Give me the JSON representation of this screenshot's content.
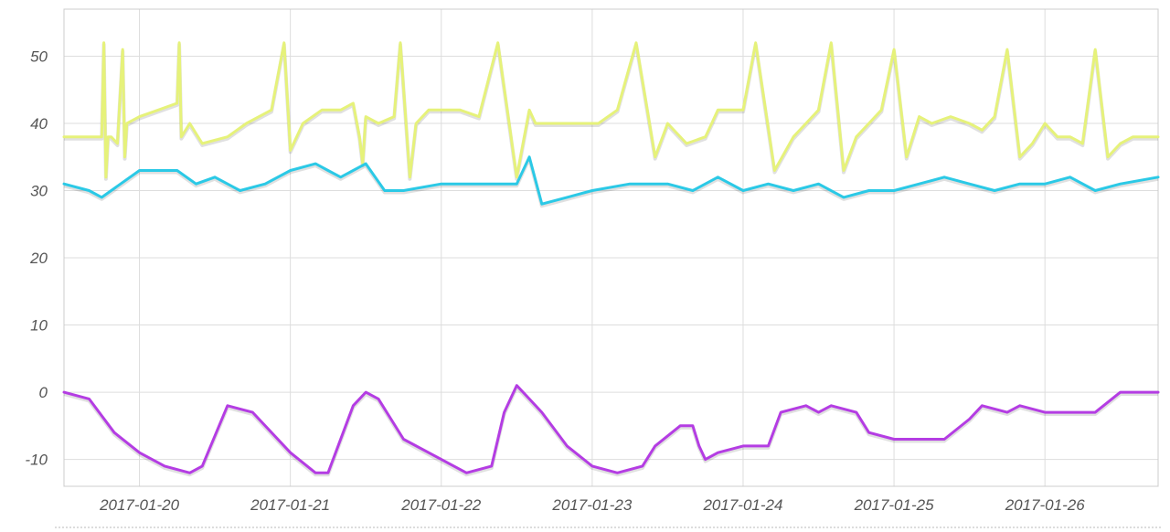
{
  "chart_data": {
    "type": "line",
    "title": "",
    "xlabel": "",
    "ylabel": "",
    "ylim": [
      -14,
      57
    ],
    "xlim": [
      "2017-01-19 12:00",
      "2017-01-26 18:00"
    ],
    "grid": true,
    "legend": "none",
    "y_ticks": [
      "50",
      "40",
      "30",
      "20",
      "10",
      "0",
      "-10"
    ],
    "y_tick_values": [
      50,
      40,
      30,
      20,
      10,
      0,
      -10
    ],
    "x_ticks": [
      "2017-01-20",
      "2017-01-21",
      "2017-01-22",
      "2017-01-23",
      "2017-01-24",
      "2017-01-25",
      "2017-01-26"
    ],
    "x_tick_dates": [
      "2017-01-20 00:00",
      "2017-01-21 00:00",
      "2017-01-22 00:00",
      "2017-01-23 00:00",
      "2017-01-24 00:00",
      "2017-01-25 00:00",
      "2017-01-26 00:00"
    ],
    "series": [
      {
        "color": "#e6f27a",
        "x": [
          "2017-01-19 12:00",
          "2017-01-19 15:00",
          "2017-01-19 18:00",
          "2017-01-19 18:20",
          "2017-01-19 18:40",
          "2017-01-19 19:00",
          "2017-01-19 19:30",
          "2017-01-19 20:30",
          "2017-01-19 21:20",
          "2017-01-19 21:40",
          "2017-01-19 22:00",
          "2017-01-20 00:00",
          "2017-01-20 03:00",
          "2017-01-20 06:00",
          "2017-01-20 06:20",
          "2017-01-20 06:40",
          "2017-01-20 08:00",
          "2017-01-20 10:00",
          "2017-01-20 14:00",
          "2017-01-20 17:00",
          "2017-01-20 21:00",
          "2017-01-20 23:00",
          "2017-01-21 00:00",
          "2017-01-21 02:00",
          "2017-01-21 05:00",
          "2017-01-21 08:00",
          "2017-01-21 10:00",
          "2017-01-21 11:00",
          "2017-01-21 11:30",
          "2017-01-21 12:00",
          "2017-01-21 14:00",
          "2017-01-21 16:30",
          "2017-01-21 17:30",
          "2017-01-21 19:00",
          "2017-01-21 20:00",
          "2017-01-21 22:00",
          "2017-01-22 00:00",
          "2017-01-22 03:00",
          "2017-01-22 06:00",
          "2017-01-22 09:00",
          "2017-01-22 12:00",
          "2017-01-22 14:00",
          "2017-01-22 15:00",
          "2017-01-22 16:00",
          "2017-01-22 18:00",
          "2017-01-22 20:00",
          "2017-01-22 22:00",
          "2017-01-23 01:00",
          "2017-01-23 04:00",
          "2017-01-23 07:00",
          "2017-01-23 10:00",
          "2017-01-23 12:00",
          "2017-01-23 15:00",
          "2017-01-23 18:00",
          "2017-01-23 19:00",
          "2017-01-23 20:00",
          "2017-01-23 22:00",
          "2017-01-24 00:00",
          "2017-01-24 02:00",
          "2017-01-24 05:00",
          "2017-01-24 08:00",
          "2017-01-24 10:00",
          "2017-01-24 12:00",
          "2017-01-24 14:00",
          "2017-01-24 16:00",
          "2017-01-24 18:00",
          "2017-01-24 20:00",
          "2017-01-24 22:00",
          "2017-01-25 00:00",
          "2017-01-25 02:00",
          "2017-01-25 04:00",
          "2017-01-25 06:00",
          "2017-01-25 09:00",
          "2017-01-25 12:00",
          "2017-01-25 14:00",
          "2017-01-25 16:00",
          "2017-01-25 18:00",
          "2017-01-25 20:00",
          "2017-01-25 22:00",
          "2017-01-26 00:00",
          "2017-01-26 02:00",
          "2017-01-26 04:00",
          "2017-01-26 06:00",
          "2017-01-26 08:00",
          "2017-01-26 10:00",
          "2017-01-26 12:00",
          "2017-01-26 14:00",
          "2017-01-26 16:00",
          "2017-01-26 18:00"
        ],
        "values": [
          38,
          38,
          38,
          52,
          32,
          38,
          38,
          37,
          51,
          35,
          40,
          41,
          42,
          43,
          52,
          38,
          40,
          37,
          38,
          40,
          42,
          52,
          36,
          40,
          42,
          42,
          43,
          38,
          34,
          41,
          40,
          41,
          52,
          32,
          40,
          42,
          42,
          42,
          41,
          52,
          32,
          42,
          40,
          40,
          40,
          40,
          40,
          40,
          42,
          52,
          35,
          40,
          37,
          38,
          40,
          42,
          42,
          42,
          52,
          33,
          38,
          40,
          42,
          52,
          33,
          38,
          40,
          42,
          51,
          35,
          41,
          40,
          41,
          40,
          39,
          41,
          51,
          35,
          37,
          40,
          38,
          38,
          37,
          51,
          35,
          37,
          38,
          38,
          38
        ],
        "name": ""
      },
      {
        "color": "#2bc9e6",
        "x": [
          "2017-01-19 12:00",
          "2017-01-19 16:00",
          "2017-01-19 18:00",
          "2017-01-19 21:00",
          "2017-01-20 00:00",
          "2017-01-20 04:00",
          "2017-01-20 06:00",
          "2017-01-20 09:00",
          "2017-01-20 12:00",
          "2017-01-20 16:00",
          "2017-01-20 20:00",
          "2017-01-21 00:00",
          "2017-01-21 04:00",
          "2017-01-21 06:00",
          "2017-01-21 08:00",
          "2017-01-21 12:00",
          "2017-01-21 15:00",
          "2017-01-21 18:00",
          "2017-01-22 00:00",
          "2017-01-22 06:00",
          "2017-01-22 10:00",
          "2017-01-22 12:00",
          "2017-01-22 14:00",
          "2017-01-22 16:00",
          "2017-01-22 20:00",
          "2017-01-23 00:00",
          "2017-01-23 06:00",
          "2017-01-23 12:00",
          "2017-01-23 16:00",
          "2017-01-23 20:00",
          "2017-01-24 00:00",
          "2017-01-24 04:00",
          "2017-01-24 08:00",
          "2017-01-24 12:00",
          "2017-01-24 16:00",
          "2017-01-24 20:00",
          "2017-01-25 00:00",
          "2017-01-25 04:00",
          "2017-01-25 08:00",
          "2017-01-25 12:00",
          "2017-01-25 16:00",
          "2017-01-25 20:00",
          "2017-01-26 00:00",
          "2017-01-26 04:00",
          "2017-01-26 08:00",
          "2017-01-26 12:00",
          "2017-01-26 18:00"
        ],
        "values": [
          31,
          30,
          29,
          31,
          33,
          33,
          33,
          31,
          32,
          30,
          31,
          33,
          34,
          33,
          32,
          34,
          30,
          30,
          31,
          31,
          31,
          31,
          35,
          28,
          29,
          30,
          31,
          31,
          30,
          32,
          30,
          31,
          30,
          31,
          29,
          30,
          30,
          31,
          32,
          31,
          30,
          31,
          31,
          32,
          30,
          31,
          32
        ],
        "name": ""
      },
      {
        "color": "#b43de3",
        "x": [
          "2017-01-19 12:00",
          "2017-01-19 16:00",
          "2017-01-19 20:00",
          "2017-01-20 00:00",
          "2017-01-20 04:00",
          "2017-01-20 08:00",
          "2017-01-20 10:00",
          "2017-01-20 14:00",
          "2017-01-20 18:00",
          "2017-01-21 00:00",
          "2017-01-21 04:00",
          "2017-01-21 06:00",
          "2017-01-21 10:00",
          "2017-01-21 12:00",
          "2017-01-21 14:00",
          "2017-01-21 18:00",
          "2017-01-22 00:00",
          "2017-01-22 04:00",
          "2017-01-22 08:00",
          "2017-01-22 10:00",
          "2017-01-22 12:00",
          "2017-01-22 14:00",
          "2017-01-22 16:00",
          "2017-01-22 20:00",
          "2017-01-23 00:00",
          "2017-01-23 04:00",
          "2017-01-23 08:00",
          "2017-01-23 10:00",
          "2017-01-23 14:00",
          "2017-01-23 16:00",
          "2017-01-23 17:00",
          "2017-01-23 18:00",
          "2017-01-23 20:00",
          "2017-01-24 00:00",
          "2017-01-24 04:00",
          "2017-01-24 06:00",
          "2017-01-24 10:00",
          "2017-01-24 12:00",
          "2017-01-24 14:00",
          "2017-01-24 18:00",
          "2017-01-24 20:00",
          "2017-01-25 00:00",
          "2017-01-25 04:00",
          "2017-01-25 08:00",
          "2017-01-25 12:00",
          "2017-01-25 14:00",
          "2017-01-25 18:00",
          "2017-01-25 20:00",
          "2017-01-26 00:00",
          "2017-01-26 04:00",
          "2017-01-26 08:00",
          "2017-01-26 12:00",
          "2017-01-26 18:00"
        ],
        "values": [
          0,
          -1,
          -6,
          -9,
          -11,
          -12,
          -11,
          -2,
          -3,
          -9,
          -12,
          -12,
          -2,
          0,
          -1,
          -7,
          -10,
          -12,
          -11,
          -3,
          1,
          -1,
          -3,
          -8,
          -11,
          -12,
          -11,
          -8,
          -5,
          -5,
          -8,
          -10,
          -9,
          -8,
          -8,
          -3,
          -2,
          -3,
          -2,
          -3,
          -6,
          -7,
          -7,
          -7,
          -4,
          -2,
          -3,
          -2,
          -3,
          -3,
          -3,
          0,
          0
        ],
        "name": ""
      }
    ]
  }
}
